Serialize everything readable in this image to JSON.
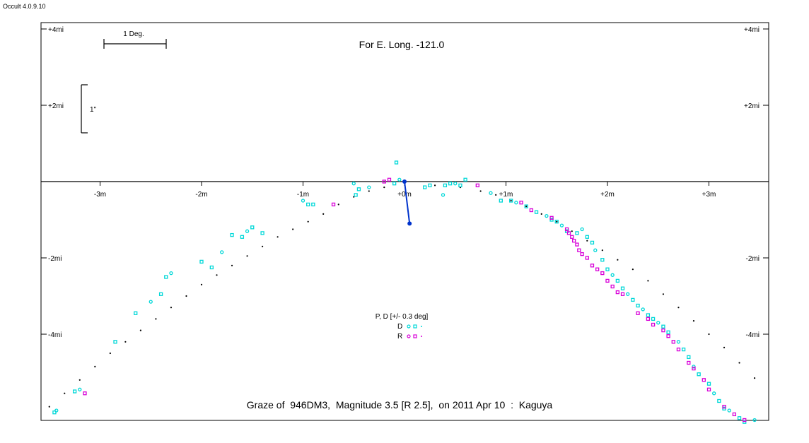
{
  "app": {
    "version": "Occult 4.0.9.10"
  },
  "chart_data": {
    "type": "scatter",
    "title": "Graze of  946DM3,  Magnitude 3.5 [R 2.5],  on 2011 Apr 10  :  Kaguya",
    "subtitle": "For E. Long. -121.0",
    "x_ticks": [
      {
        "value": -3,
        "label": "-3m"
      },
      {
        "value": -2,
        "label": "-2m"
      },
      {
        "value": -1,
        "label": "-1m"
      },
      {
        "value": 0,
        "label": "+0m"
      },
      {
        "value": 1,
        "label": "+1m"
      },
      {
        "value": 2,
        "label": "+2m"
      },
      {
        "value": 3,
        "label": "+3m"
      }
    ],
    "y_ticks": [
      {
        "value": 4,
        "label": "+4mi"
      },
      {
        "value": 2,
        "label": "+2mi"
      },
      {
        "value": -2,
        "label": "-2mi"
      },
      {
        "value": -4,
        "label": "-4mi"
      }
    ],
    "xlim": [
      -3.57,
      3.57
    ],
    "ylim": [
      -6.3,
      4.2
    ],
    "scale_bars": {
      "horizontal": "1 Deg.",
      "vertical": "1\""
    },
    "legend": {
      "title": "P, D [+/- 0.3 deg]",
      "entries": [
        {
          "label": "D",
          "color": "#00d8d8"
        },
        {
          "label": "R",
          "color": "#d800d8"
        }
      ],
      "position": "bottom-center"
    },
    "colors": {
      "D": "#00d8d8",
      "R": "#d800d8",
      "profile": "#000000",
      "vector": "#0033cc"
    },
    "limb_profile": [
      [
        -3.5,
        -5.9
      ],
      [
        -3.35,
        -5.55
      ],
      [
        -3.2,
        -5.2
      ],
      [
        -3.05,
        -4.85
      ],
      [
        -2.9,
        -4.5
      ],
      [
        -2.75,
        -4.2
      ],
      [
        -2.6,
        -3.9
      ],
      [
        -2.45,
        -3.6
      ],
      [
        -2.3,
        -3.3
      ],
      [
        -2.15,
        -3.0
      ],
      [
        -2.0,
        -2.7
      ],
      [
        -1.85,
        -2.45
      ],
      [
        -1.7,
        -2.2
      ],
      [
        -1.55,
        -1.95
      ],
      [
        -1.4,
        -1.7
      ],
      [
        -1.25,
        -1.45
      ],
      [
        -1.1,
        -1.25
      ],
      [
        -0.95,
        -1.05
      ],
      [
        -0.8,
        -0.85
      ],
      [
        -0.65,
        -0.6
      ],
      [
        -0.5,
        -0.4
      ],
      [
        -0.35,
        -0.25
      ],
      [
        -0.2,
        -0.15
      ],
      [
        0.3,
        -0.1
      ],
      [
        0.55,
        -0.15
      ],
      [
        0.75,
        -0.25
      ],
      [
        0.9,
        -0.35
      ],
      [
        1.05,
        -0.5
      ],
      [
        1.2,
        -0.65
      ],
      [
        1.35,
        -0.85
      ],
      [
        1.5,
        -1.05
      ],
      [
        1.65,
        -1.3
      ],
      [
        1.8,
        -1.55
      ],
      [
        1.95,
        -1.8
      ],
      [
        2.1,
        -2.05
      ],
      [
        2.25,
        -2.3
      ],
      [
        2.4,
        -2.6
      ],
      [
        2.55,
        -2.95
      ],
      [
        2.7,
        -3.3
      ],
      [
        2.85,
        -3.65
      ],
      [
        3.0,
        -4.0
      ],
      [
        3.15,
        -4.35
      ],
      [
        3.3,
        -4.75
      ],
      [
        3.45,
        -5.15
      ]
    ],
    "d_events": [
      [
        -3.43,
        -6.0
      ],
      [
        -3.45,
        -6.05
      ],
      [
        -3.25,
        -5.5
      ],
      [
        -3.2,
        -5.45
      ],
      [
        -2.85,
        -4.2
      ],
      [
        -2.65,
        -3.45
      ],
      [
        -2.5,
        -3.15
      ],
      [
        -2.4,
        -2.95
      ],
      [
        -2.35,
        -2.5
      ],
      [
        -2.3,
        -2.4
      ],
      [
        -2.0,
        -2.1
      ],
      [
        -1.9,
        -2.25
      ],
      [
        -1.8,
        -1.85
      ],
      [
        -1.7,
        -1.4
      ],
      [
        -1.6,
        -1.45
      ],
      [
        -1.55,
        -1.3
      ],
      [
        -1.5,
        -1.2
      ],
      [
        -1.4,
        -1.35
      ],
      [
        -1.0,
        -0.5
      ],
      [
        -0.95,
        -0.6
      ],
      [
        -0.9,
        -0.6
      ],
      [
        -0.5,
        -0.05
      ],
      [
        -0.48,
        -0.35
      ],
      [
        -0.45,
        -0.2
      ],
      [
        -0.35,
        -0.15
      ],
      [
        -0.1,
        -0.05
      ],
      [
        -0.08,
        0.5
      ],
      [
        -0.05,
        0.05
      ],
      [
        0.2,
        -0.15
      ],
      [
        0.25,
        -0.1
      ],
      [
        0.38,
        -0.35
      ],
      [
        0.4,
        -0.1
      ],
      [
        0.45,
        -0.05
      ],
      [
        0.5,
        -0.05
      ],
      [
        0.55,
        -0.1
      ],
      [
        0.6,
        0.05
      ],
      [
        0.85,
        -0.3
      ],
      [
        0.95,
        -0.5
      ],
      [
        1.05,
        -0.5
      ],
      [
        1.1,
        -0.55
      ],
      [
        1.2,
        -0.65
      ],
      [
        1.3,
        -0.8
      ],
      [
        1.4,
        -0.9
      ],
      [
        1.45,
        -1.0
      ],
      [
        1.5,
        -1.05
      ],
      [
        1.55,
        -1.15
      ],
      [
        1.6,
        -1.3
      ],
      [
        1.7,
        -1.35
      ],
      [
        1.75,
        -1.25
      ],
      [
        1.8,
        -1.45
      ],
      [
        1.85,
        -1.6
      ],
      [
        1.88,
        -1.8
      ],
      [
        1.95,
        -2.05
      ],
      [
        2.0,
        -2.3
      ],
      [
        2.05,
        -2.45
      ],
      [
        2.1,
        -2.6
      ],
      [
        2.15,
        -2.8
      ],
      [
        2.2,
        -2.95
      ],
      [
        2.25,
        -3.1
      ],
      [
        2.3,
        -3.25
      ],
      [
        2.35,
        -3.35
      ],
      [
        2.4,
        -3.5
      ],
      [
        2.45,
        -3.6
      ],
      [
        2.5,
        -3.7
      ],
      [
        2.55,
        -3.8
      ],
      [
        2.6,
        -3.95
      ],
      [
        2.7,
        -4.2
      ],
      [
        2.75,
        -4.4
      ],
      [
        2.8,
        -4.6
      ],
      [
        2.85,
        -4.85
      ],
      [
        2.9,
        -5.05
      ],
      [
        3.0,
        -5.3
      ],
      [
        3.05,
        -5.55
      ],
      [
        3.1,
        -5.75
      ],
      [
        3.15,
        -5.95
      ],
      [
        3.2,
        -6.0
      ],
      [
        3.3,
        -6.2
      ],
      [
        3.35,
        -6.3
      ],
      [
        3.45,
        -6.25
      ]
    ],
    "r_events": [
      [
        -3.15,
        -5.55
      ],
      [
        -0.7,
        -0.6
      ],
      [
        -0.2,
        0.0
      ],
      [
        -0.15,
        0.05
      ],
      [
        0.72,
        -0.1
      ],
      [
        1.15,
        -0.55
      ],
      [
        1.25,
        -0.75
      ],
      [
        1.45,
        -0.95
      ],
      [
        1.6,
        -1.25
      ],
      [
        1.62,
        -1.35
      ],
      [
        1.65,
        -1.45
      ],
      [
        1.67,
        -1.55
      ],
      [
        1.7,
        -1.65
      ],
      [
        1.72,
        -1.8
      ],
      [
        1.75,
        -1.9
      ],
      [
        1.8,
        -2.0
      ],
      [
        1.85,
        -2.2
      ],
      [
        1.9,
        -2.3
      ],
      [
        1.95,
        -2.4
      ],
      [
        2.0,
        -2.6
      ],
      [
        2.05,
        -2.75
      ],
      [
        2.1,
        -2.9
      ],
      [
        2.15,
        -2.95
      ],
      [
        2.3,
        -3.45
      ],
      [
        2.4,
        -3.6
      ],
      [
        2.45,
        -3.75
      ],
      [
        2.55,
        -3.9
      ],
      [
        2.6,
        -4.05
      ],
      [
        2.65,
        -4.2
      ],
      [
        2.7,
        -4.4
      ],
      [
        2.8,
        -4.75
      ],
      [
        2.85,
        -4.9
      ],
      [
        2.95,
        -5.2
      ],
      [
        3.0,
        -5.45
      ],
      [
        3.15,
        -5.9
      ],
      [
        3.25,
        -6.1
      ],
      [
        3.35,
        -6.25
      ]
    ],
    "vector": {
      "from": [
        0.0,
        0.0
      ],
      "to": [
        0.05,
        -1.1
      ]
    }
  }
}
